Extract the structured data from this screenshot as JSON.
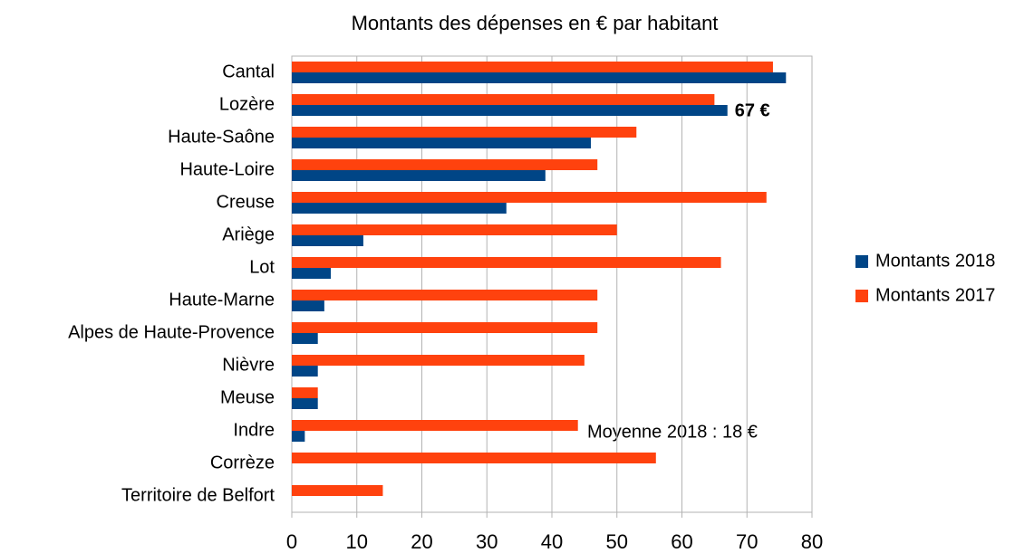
{
  "chart_data": {
    "type": "bar",
    "orientation": "horizontal",
    "title": "Montants des dépenses en € par habitant",
    "categories": [
      "Cantal",
      "Lozère",
      "Haute-Saône",
      "Haute-Loire",
      "Creuse",
      "Ariège",
      "Lot",
      "Haute-Marne",
      "Alpes de Haute-Provence",
      "Nièvre",
      "Meuse",
      "Indre",
      "Corrèze",
      "Territoire de Belfort"
    ],
    "series": [
      {
        "name": "Montants 2018",
        "color": "#004586",
        "values": [
          76,
          67,
          46,
          39,
          33,
          11,
          6,
          5,
          4,
          4,
          4,
          2,
          0,
          0
        ],
        "value_labels": [
          null,
          "67 €",
          null,
          null,
          null,
          null,
          null,
          null,
          null,
          null,
          null,
          null,
          null,
          null
        ]
      },
      {
        "name": "Montants 2017",
        "color": "#ff420e",
        "values": [
          74,
          65,
          53,
          47,
          73,
          50,
          66,
          47,
          47,
          45,
          4,
          44,
          56,
          14
        ]
      }
    ],
    "annotations": [
      "Moyenne 2018 : 18 €"
    ],
    "xlim": [
      0,
      80
    ],
    "xticks": [
      0,
      10,
      20,
      30,
      40,
      50,
      60,
      70,
      80
    ],
    "grid": true,
    "legend": "right"
  }
}
